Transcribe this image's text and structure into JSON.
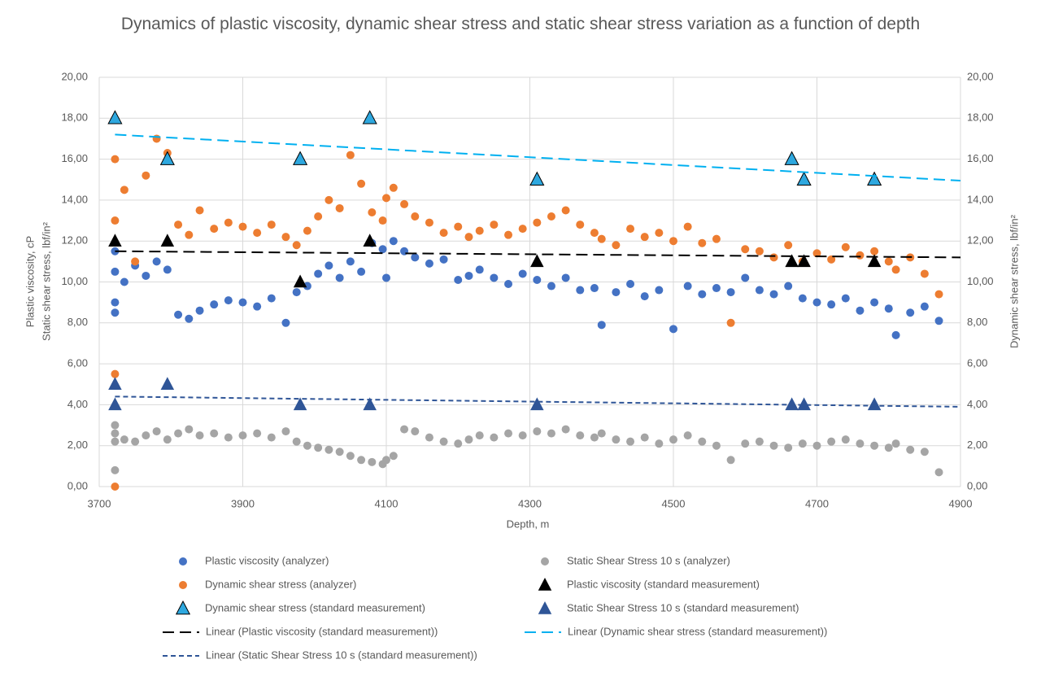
{
  "chart_data": {
    "type": "scatter",
    "title": "Dynamics of plastic viscosity, dynamic shear stress and static shear stress variation as a function of depth",
    "xlabel": "Depth, m",
    "ylabel": [
      "Plastic viscosity, cP",
      "Static shear stress, lbf/in²"
    ],
    "y2label": "Dynamic shear stress, lbf/in²",
    "xlim": [
      3700,
      4900
    ],
    "xticks": [
      3700,
      3900,
      4100,
      4300,
      4500,
      4700,
      4900
    ],
    "ylim": [
      0,
      20
    ],
    "yticks": [
      {
        "value": 0,
        "label": "0,00"
      },
      {
        "value": 2,
        "label": "2,00"
      },
      {
        "value": 4,
        "label": "4,00"
      },
      {
        "value": 6,
        "label": "6,00"
      },
      {
        "value": 8,
        "label": "8,00"
      },
      {
        "value": 10,
        "label": "10,00"
      },
      {
        "value": 12,
        "label": "12,00"
      },
      {
        "value": 14,
        "label": "14,00"
      },
      {
        "value": 16,
        "label": "16,00"
      },
      {
        "value": 18,
        "label": "18,00"
      },
      {
        "value": 20,
        "label": "20,00"
      }
    ],
    "y2lim": [
      0,
      20
    ],
    "y2ticks": [
      {
        "value": 0,
        "label": "0,00"
      },
      {
        "value": 2,
        "label": "2,00"
      },
      {
        "value": 4,
        "label": "4,00"
      },
      {
        "value": 6,
        "label": "6,00"
      },
      {
        "value": 8,
        "label": "8,00"
      },
      {
        "value": 10,
        "label": "10,00"
      },
      {
        "value": 12,
        "label": "12,00"
      },
      {
        "value": 14,
        "label": "14,00"
      },
      {
        "value": 16,
        "label": "16,00"
      },
      {
        "value": 18,
        "label": "18,00"
      },
      {
        "value": 20,
        "label": "20,00"
      }
    ],
    "grid": true,
    "legend": "bottom",
    "series": [
      {
        "name": "Plastic viscosity (analyzer)",
        "color": "#4472c4",
        "marker": "circle",
        "x": [
          3722,
          3722,
          3722,
          3722,
          3735,
          3750,
          3765,
          3780,
          3795,
          3810,
          3825,
          3840,
          3860,
          3880,
          3900,
          3920,
          3940,
          3960,
          3975,
          3990,
          4005,
          4020,
          4035,
          4050,
          4065,
          4080,
          4095,
          4100,
          4110,
          4125,
          4140,
          4160,
          4180,
          4200,
          4215,
          4230,
          4250,
          4270,
          4290,
          4310,
          4330,
          4350,
          4370,
          4390,
          4400,
          4420,
          4440,
          4460,
          4480,
          4500,
          4520,
          4540,
          4560,
          4580,
          4600,
          4620,
          4640,
          4660,
          4680,
          4700,
          4720,
          4740,
          4760,
          4780,
          4800,
          4810,
          4830,
          4850,
          4870
        ],
        "values": [
          9.0,
          10.5,
          11.5,
          8.5,
          10.0,
          10.8,
          10.3,
          11.0,
          10.6,
          8.4,
          8.2,
          8.6,
          8.9,
          9.1,
          9.0,
          8.8,
          9.2,
          8.0,
          9.5,
          9.8,
          10.4,
          10.8,
          10.2,
          11.0,
          10.5,
          11.9,
          11.6,
          10.2,
          12.0,
          11.5,
          11.2,
          10.9,
          11.1,
          10.1,
          10.3,
          10.6,
          10.2,
          9.9,
          10.4,
          10.1,
          9.8,
          10.2,
          9.6,
          9.7,
          7.9,
          9.5,
          9.9,
          9.3,
          9.6,
          7.7,
          9.8,
          9.4,
          9.7,
          9.5,
          10.2,
          9.6,
          9.4,
          9.8,
          9.2,
          9.0,
          8.9,
          9.2,
          8.6,
          9.0,
          8.7,
          7.4,
          8.5,
          8.8,
          8.1
        ]
      },
      {
        "name": "Static Shear Stress 10 s (analyzer)",
        "color": "#a5a5a5",
        "marker": "circle",
        "x": [
          3722,
          3722,
          3722,
          3722,
          3735,
          3750,
          3765,
          3780,
          3795,
          3810,
          3825,
          3840,
          3860,
          3880,
          3900,
          3920,
          3940,
          3960,
          3975,
          3990,
          4005,
          4020,
          4035,
          4050,
          4065,
          4080,
          4095,
          4100,
          4110,
          4125,
          4140,
          4160,
          4180,
          4200,
          4215,
          4230,
          4250,
          4270,
          4290,
          4310,
          4330,
          4350,
          4370,
          4390,
          4400,
          4420,
          4440,
          4460,
          4480,
          4500,
          4520,
          4540,
          4560,
          4580,
          4600,
          4620,
          4640,
          4660,
          4680,
          4700,
          4720,
          4740,
          4760,
          4780,
          4800,
          4810,
          4830,
          4850,
          4870
        ],
        "values": [
          3.0,
          2.6,
          0.8,
          2.2,
          2.3,
          2.2,
          2.5,
          2.7,
          2.3,
          2.6,
          2.8,
          2.5,
          2.6,
          2.4,
          2.5,
          2.6,
          2.4,
          2.7,
          2.2,
          2.0,
          1.9,
          1.8,
          1.7,
          1.5,
          1.3,
          1.2,
          1.1,
          1.3,
          1.5,
          2.8,
          2.7,
          2.4,
          2.2,
          2.1,
          2.3,
          2.5,
          2.4,
          2.6,
          2.5,
          2.7,
          2.6,
          2.8,
          2.5,
          2.4,
          2.6,
          2.3,
          2.2,
          2.4,
          2.1,
          2.3,
          2.5,
          2.2,
          2.0,
          1.3,
          2.1,
          2.2,
          2.0,
          1.9,
          2.1,
          2.0,
          2.2,
          2.3,
          2.1,
          2.0,
          1.9,
          2.1,
          1.8,
          1.7,
          0.7
        ]
      },
      {
        "name": "Dynamic shear stress (analyzer)",
        "color": "#ed7d31",
        "marker": "circle",
        "axis": "y2",
        "x": [
          3722,
          3722,
          3722,
          3722,
          3735,
          3750,
          3765,
          3780,
          3795,
          3810,
          3825,
          3840,
          3860,
          3880,
          3900,
          3920,
          3940,
          3960,
          3975,
          3990,
          4005,
          4020,
          4035,
          4050,
          4065,
          4080,
          4095,
          4100,
          4110,
          4125,
          4140,
          4160,
          4180,
          4200,
          4215,
          4230,
          4250,
          4270,
          4290,
          4310,
          4330,
          4350,
          4370,
          4390,
          4400,
          4420,
          4440,
          4460,
          4480,
          4500,
          4520,
          4540,
          4560,
          4580,
          4600,
          4620,
          4640,
          4660,
          4680,
          4700,
          4720,
          4740,
          4760,
          4780,
          4800,
          4810,
          4830,
          4850,
          4870
        ],
        "values": [
          16.0,
          13.0,
          5.5,
          0.0,
          14.5,
          11.0,
          15.2,
          17.0,
          16.3,
          12.8,
          12.3,
          13.5,
          12.6,
          12.9,
          12.7,
          12.4,
          12.8,
          12.2,
          11.8,
          12.5,
          13.2,
          14.0,
          13.6,
          16.2,
          14.8,
          13.4,
          13.0,
          14.1,
          14.6,
          13.8,
          13.2,
          12.9,
          12.4,
          12.7,
          12.2,
          12.5,
          12.8,
          12.3,
          12.6,
          12.9,
          13.2,
          13.5,
          12.8,
          12.4,
          12.1,
          11.8,
          12.6,
          12.2,
          12.4,
          12.0,
          12.7,
          11.9,
          12.1,
          8.0,
          11.6,
          11.5,
          11.2,
          11.8,
          11.0,
          11.4,
          11.1,
          11.7,
          11.3,
          11.5,
          11.0,
          10.6,
          11.2,
          10.4,
          9.4
        ]
      },
      {
        "name": "Plastic viscosity (standard measurement)",
        "color": "#000000",
        "marker": "triangle",
        "x": [
          3722,
          3795,
          3980,
          4077,
          4310,
          4665,
          4682,
          4780
        ],
        "values": [
          12,
          12,
          10,
          12,
          11,
          11,
          11,
          11
        ]
      },
      {
        "name": "Dynamic shear stress  (standard measurement)",
        "color": "#2ea8df",
        "edge": "#000000",
        "marker": "triangle",
        "axis": "y2",
        "x": [
          3722,
          3795,
          3980,
          4077,
          4310,
          4665,
          4682,
          4780
        ],
        "values": [
          18,
          16,
          16,
          18,
          15,
          16,
          15,
          15
        ]
      },
      {
        "name": "Static Shear Stress 10 s (standard measurement)",
        "color": "#2f5597",
        "marker": "triangle",
        "x": [
          3722,
          3722,
          3795,
          3980,
          4077,
          4310,
          4665,
          4682,
          4780
        ],
        "values": [
          5,
          4,
          5,
          4,
          4,
          4,
          4,
          4,
          4
        ]
      },
      {
        "name": "Linear (Plastic viscosity (standard measurement))",
        "color": "#000000",
        "dash": "long",
        "x": [
          3722,
          4900
        ],
        "values": [
          11.5,
          11.2
        ]
      },
      {
        "name": "Linear (Dynamic shear stress  (standard measurement))",
        "color": "#00b0f0",
        "dash": "long",
        "axis": "y2",
        "x": [
          3722,
          4900
        ],
        "values": [
          17.2,
          14.95
        ]
      },
      {
        "name": "Linear (Static Shear Stress 10 s (standard measurement))",
        "color": "#2f5597",
        "dash": "short",
        "x": [
          3722,
          4900
        ],
        "values": [
          4.4,
          3.9
        ]
      }
    ]
  }
}
